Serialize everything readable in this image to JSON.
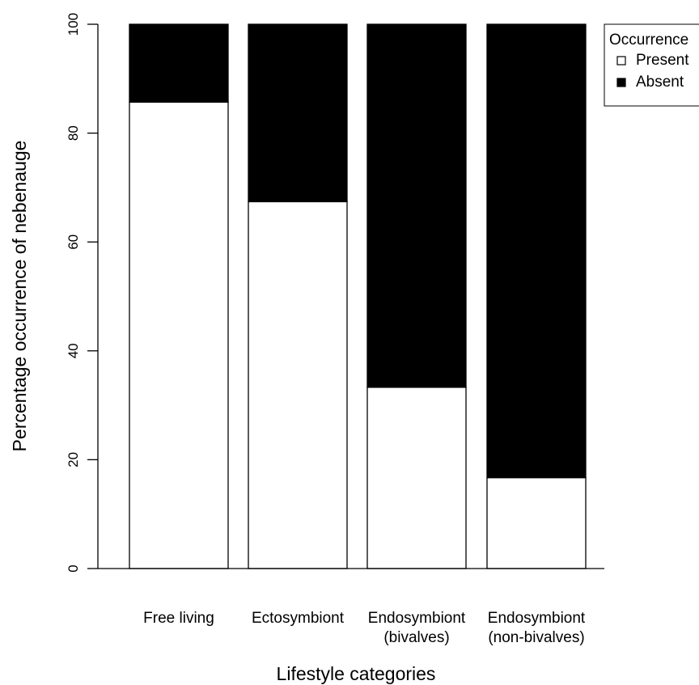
{
  "chart_data": {
    "type": "bar",
    "stacked": true,
    "categories": [
      [
        "Free living"
      ],
      [
        "Ectosymbiont"
      ],
      [
        "Endosymbiont",
        "(bivalves)"
      ],
      [
        "Endosymbiont",
        "(non-bivalves)"
      ]
    ],
    "series": [
      {
        "name": "Present",
        "color": "#ffffff",
        "values": [
          85.7,
          67.4,
          33.3,
          16.7
        ]
      },
      {
        "name": "Absent",
        "color": "#000000",
        "values": [
          14.3,
          32.6,
          66.7,
          83.3
        ]
      }
    ],
    "title": "",
    "xlabel": "Lifestyle categories",
    "ylabel": "Percentage occurrence of nebenauge",
    "ylim": [
      0,
      100
    ],
    "yticks": [
      "0",
      "20",
      "40",
      "60",
      "80",
      "100"
    ],
    "legend": {
      "title": "Occurrence",
      "placement": "top-right"
    },
    "grid": false
  }
}
